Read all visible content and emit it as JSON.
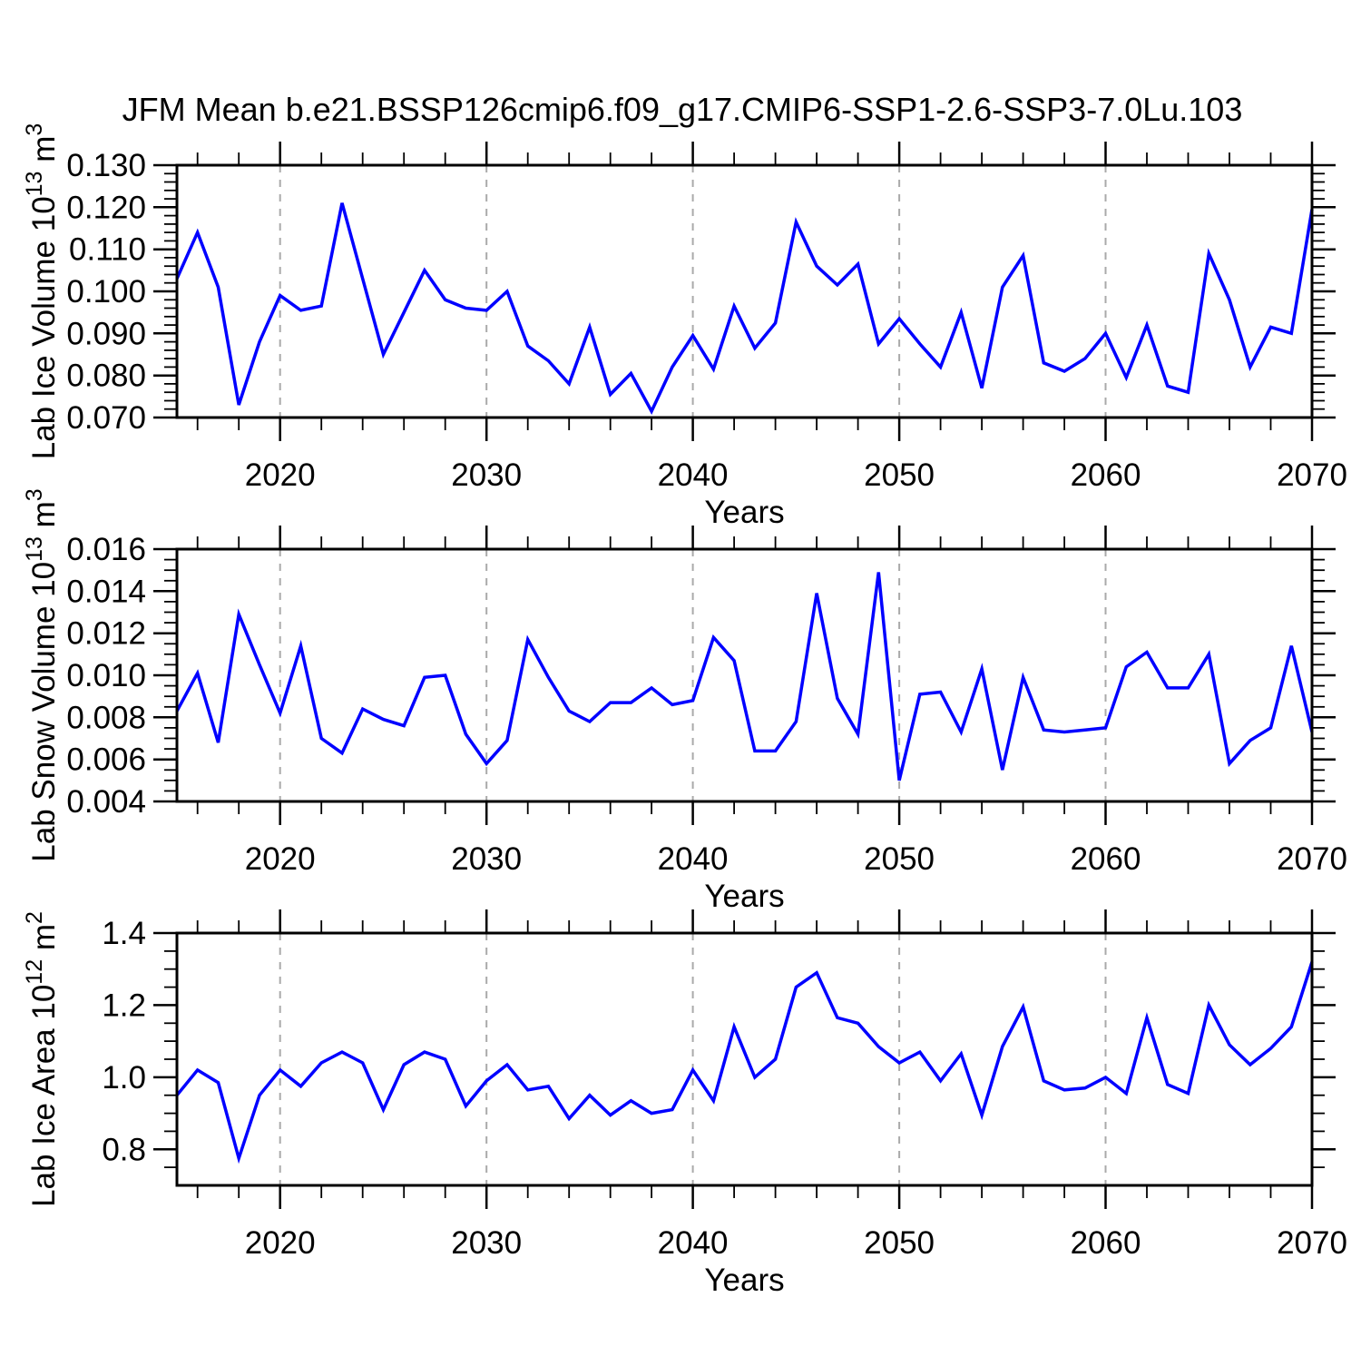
{
  "figure": {
    "title": "JFM Mean b.e21.BSSP126cmip6.f09_g17.CMIP6-SSP1-2.6-SSP3-7.0Lu.103"
  },
  "chart_data": {
    "type": "line",
    "title": "JFM Mean b.e21.BSSP126cmip6.f09_g17.CMIP6-SSP1-2.6-SSP3-7.0Lu.103",
    "x_label": "Years",
    "xlim": [
      2015,
      2070
    ],
    "xticks_labeled": [
      2020,
      2030,
      2040,
      2050,
      2060,
      2070
    ],
    "x_minor_tick_step": 2,
    "grid_x_dashed": [
      2020,
      2030,
      2040,
      2050,
      2060
    ],
    "legend": "none",
    "grid_on": true,
    "grid_color": "#aaaaaa",
    "line_color": "#0000ff",
    "axis_color": "#000000",
    "x": [
      2015,
      2016,
      2017,
      2018,
      2019,
      2020,
      2021,
      2022,
      2023,
      2024,
      2025,
      2026,
      2027,
      2028,
      2029,
      2030,
      2031,
      2032,
      2033,
      2034,
      2035,
      2036,
      2037,
      2038,
      2039,
      2040,
      2041,
      2042,
      2043,
      2044,
      2045,
      2046,
      2047,
      2048,
      2049,
      2050,
      2051,
      2052,
      2053,
      2054,
      2055,
      2056,
      2057,
      2058,
      2059,
      2060,
      2061,
      2062,
      2063,
      2064,
      2065,
      2066,
      2067,
      2068,
      2069,
      2070
    ],
    "panels": [
      {
        "name": "lab-ice-volume",
        "ylabel": "Lab Ice Volume 10^13 m^3",
        "ylabel_segments": [
          {
            "t": "Lab Ice Volume 10"
          },
          {
            "t": "13",
            "sup": true
          },
          {
            "t": " m"
          },
          {
            "t": "3",
            "sup": true
          }
        ],
        "ylim": [
          0.07,
          0.13
        ],
        "ytick_labels": [
          "0.070",
          "0.080",
          "0.090",
          "0.100",
          "0.110",
          "0.120",
          "0.130"
        ],
        "y_minor_tick_step": 0.002,
        "values": [
          0.103,
          0.114,
          0.101,
          0.073,
          0.088,
          0.099,
          0.0955,
          0.0965,
          0.121,
          0.103,
          0.085,
          0.095,
          0.105,
          0.098,
          0.096,
          0.0955,
          0.1,
          0.087,
          0.0835,
          0.078,
          0.0915,
          0.0755,
          0.0805,
          0.0715,
          0.082,
          0.0895,
          0.0815,
          0.0965,
          0.0865,
          0.0925,
          0.1165,
          0.106,
          0.1015,
          0.1065,
          0.0875,
          0.0935,
          0.0875,
          0.082,
          0.095,
          0.077,
          0.101,
          0.1085,
          0.083,
          0.081,
          0.084,
          0.09,
          0.0795,
          0.092,
          0.0775,
          0.076,
          0.109,
          0.098,
          0.082,
          0.0915,
          0.09,
          0.1195
        ]
      },
      {
        "name": "lab-snow-volume",
        "ylabel": "Lab Snow Volume 10^13 m^3",
        "ylabel_segments": [
          {
            "t": "Lab Snow Volume 10"
          },
          {
            "t": "13",
            "sup": true
          },
          {
            "t": " m"
          },
          {
            "t": "3",
            "sup": true
          }
        ],
        "ylim": [
          0.004,
          0.016
        ],
        "ytick_labels": [
          "0.004",
          "0.006",
          "0.008",
          "0.010",
          "0.012",
          "0.014",
          "0.016"
        ],
        "y_minor_tick_step": 0.0005,
        "values": [
          0.0083,
          0.0101,
          0.0068,
          0.0129,
          0.0105,
          0.0082,
          0.0114,
          0.007,
          0.0063,
          0.0084,
          0.0079,
          0.0076,
          0.0099,
          0.01,
          0.0072,
          0.0058,
          0.0069,
          0.0117,
          0.0099,
          0.0083,
          0.0078,
          0.0087,
          0.0087,
          0.0094,
          0.0086,
          0.0088,
          0.0118,
          0.0107,
          0.0064,
          0.0064,
          0.0078,
          0.0139,
          0.0089,
          0.0072,
          0.0149,
          0.005,
          0.0091,
          0.0092,
          0.0073,
          0.0103,
          0.0055,
          0.0099,
          0.0074,
          0.0073,
          0.0074,
          0.0075,
          0.0104,
          0.0111,
          0.0094,
          0.0094,
          0.011,
          0.0058,
          0.0069,
          0.0075,
          0.0114,
          0.0073
        ]
      },
      {
        "name": "lab-ice-area",
        "ylabel": "Lab Ice Area 10^12 m^2",
        "ylabel_segments": [
          {
            "t": "Lab Ice Area 10"
          },
          {
            "t": "12",
            "sup": true
          },
          {
            "t": " m"
          },
          {
            "t": "2",
            "sup": true
          }
        ],
        "ylim": [
          0.7,
          1.4
        ],
        "ytick_labels": [
          "0.8",
          "1.0",
          "1.2",
          "1.4"
        ],
        "y_minor_tick_step": 0.05,
        "values": [
          0.95,
          1.02,
          0.985,
          0.775,
          0.95,
          1.02,
          0.975,
          1.04,
          1.07,
          1.04,
          0.91,
          1.035,
          1.07,
          1.05,
          0.92,
          0.99,
          1.035,
          0.965,
          0.975,
          0.885,
          0.95,
          0.895,
          0.935,
          0.9,
          0.91,
          1.02,
          0.935,
          1.14,
          1.0,
          1.05,
          1.25,
          1.29,
          1.165,
          1.15,
          1.085,
          1.04,
          1.07,
          0.99,
          1.065,
          0.895,
          1.085,
          1.195,
          0.99,
          0.965,
          0.97,
          1.0,
          0.955,
          1.165,
          0.98,
          0.955,
          1.2,
          1.09,
          1.035,
          1.08,
          1.14,
          1.32
        ]
      }
    ]
  }
}
